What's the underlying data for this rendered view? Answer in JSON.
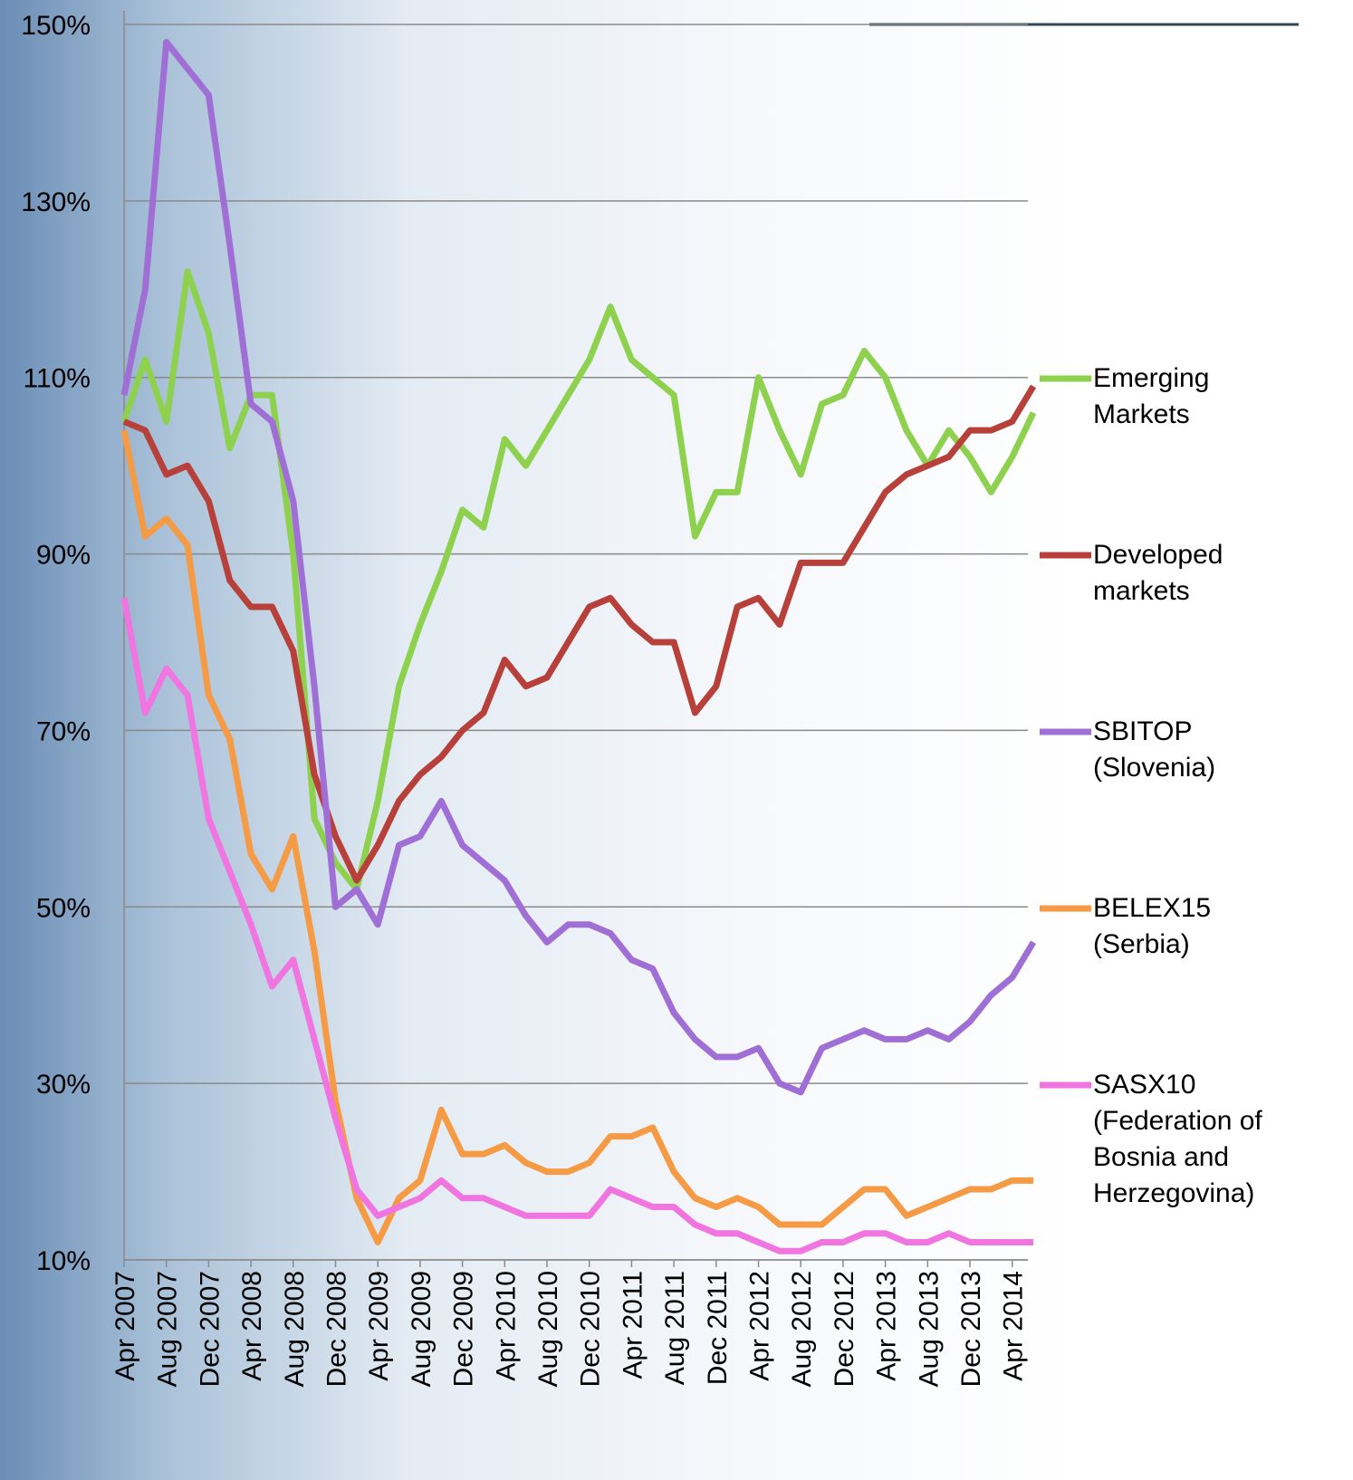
{
  "chart_data": {
    "type": "line",
    "categories": [
      "Apr 2007",
      null,
      "Aug 2007",
      null,
      "Dec 2007",
      null,
      "Apr 2008",
      null,
      "Aug 2008",
      null,
      "Dec 2008",
      null,
      "Apr 2009",
      null,
      "Aug 2009",
      null,
      "Dec 2009",
      null,
      "Apr 2010",
      null,
      "Aug 2010",
      null,
      "Dec 2010",
      null,
      "Apr 2011",
      null,
      "Aug 2011",
      null,
      "Dec 2011",
      null,
      "Apr 2012",
      null,
      "Aug 2012",
      null,
      "Dec 2012",
      null,
      "Apr 2013",
      null,
      "Aug 2013",
      null,
      "Dec 2013",
      null,
      "Apr 2014",
      null
    ],
    "ylim": [
      10,
      150
    ],
    "yticks": [
      {
        "value": 10,
        "label": "10%"
      },
      {
        "value": 30,
        "label": "30%"
      },
      {
        "value": 50,
        "label": "50%"
      },
      {
        "value": 70,
        "label": "70%"
      },
      {
        "value": 90,
        "label": "90%"
      },
      {
        "value": 110,
        "label": "110%"
      },
      {
        "value": 130,
        "label": "130%"
      },
      {
        "value": 150,
        "label": "150%"
      }
    ],
    "grid": true,
    "legend": "right",
    "series": [
      {
        "name": "Emerging Markets",
        "color": "#8ed14f",
        "values": [
          105,
          112,
          105,
          122,
          115,
          102,
          108,
          108,
          90,
          60,
          55,
          52,
          62,
          75,
          82,
          88,
          95,
          93,
          103,
          100,
          104,
          108,
          112,
          118,
          112,
          110,
          108,
          92,
          97,
          97,
          110,
          104,
          99,
          107,
          108,
          113,
          110,
          104,
          100,
          104,
          101,
          97,
          101,
          106
        ]
      },
      {
        "name": "Developed markets",
        "color": "#b8403a",
        "values": [
          105,
          104,
          99,
          100,
          96,
          87,
          84,
          84,
          79,
          65,
          58,
          53,
          57,
          62,
          65,
          67,
          70,
          72,
          78,
          75,
          76,
          80,
          84,
          85,
          82,
          80,
          80,
          72,
          75,
          84,
          85,
          82,
          89,
          89,
          89,
          93,
          97,
          99,
          100,
          101,
          104,
          104,
          105,
          109
        ]
      },
      {
        "name": "SBITOP (Slovenia)",
        "color": "#a06fd6",
        "values": [
          108,
          120,
          148,
          145,
          142,
          125,
          107,
          105,
          96,
          75,
          50,
          52,
          48,
          57,
          58,
          62,
          57,
          55,
          53,
          49,
          46,
          48,
          48,
          47,
          44,
          43,
          38,
          35,
          33,
          33,
          34,
          30,
          29,
          34,
          35,
          36,
          35,
          35,
          36,
          35,
          37,
          40,
          42,
          46
        ]
      },
      {
        "name": "BELEX15 (Serbia)",
        "color": "#f59a45",
        "values": [
          104,
          92,
          94,
          91,
          74,
          69,
          56,
          52,
          58,
          45,
          28,
          17,
          12,
          17,
          19,
          27,
          22,
          22,
          23,
          21,
          20,
          20,
          21,
          24,
          24,
          25,
          20,
          17,
          16,
          17,
          16,
          14,
          14,
          14,
          16,
          18,
          18,
          15,
          16,
          17,
          18,
          18,
          19,
          19
        ]
      },
      {
        "name": "SASX10 (Federation of Bosnia and Herzegovina)",
        "color": "#f075e0",
        "values": [
          85,
          72,
          77,
          74,
          60,
          54,
          48,
          41,
          44,
          35,
          26,
          18,
          15,
          16,
          17,
          19,
          17,
          17,
          16,
          15,
          15,
          15,
          15,
          18,
          17,
          16,
          16,
          14,
          13,
          13,
          12,
          11,
          11,
          12,
          12,
          13,
          13,
          12,
          12,
          13,
          12,
          12,
          12,
          12
        ]
      }
    ]
  }
}
